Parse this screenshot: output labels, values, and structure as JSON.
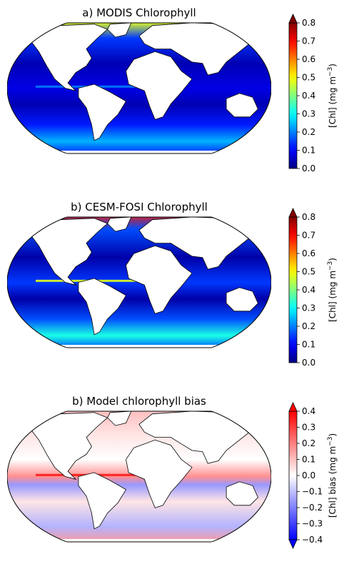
{
  "panels": [
    {
      "title": "a) MODIS Chlorophyll",
      "colorbar_label": "[Chl] (mg m",
      "colorbar_label_exp": "−3",
      "colorbar_label_end": ")",
      "scale": "jet",
      "vmin": 0.0,
      "vmax": 0.8,
      "ticks": [
        "0.0",
        "0.1",
        "0.2",
        "0.3",
        "0.4",
        "0.5",
        "0.6",
        "0.7",
        "0.8"
      ],
      "extend": "max"
    },
    {
      "title": "b) CESM-FOSI Chlorophyll",
      "colorbar_label": "[Chl] (mg m",
      "colorbar_label_exp": "−3",
      "colorbar_label_end": ")",
      "scale": "jet",
      "vmin": 0.0,
      "vmax": 0.8,
      "ticks": [
        "0.0",
        "0.1",
        "0.2",
        "0.3",
        "0.4",
        "0.5",
        "0.6",
        "0.7",
        "0.8"
      ],
      "extend": "max"
    },
    {
      "title": "b) Model chlorophyll bias",
      "colorbar_label": "[Chl] bias (mg m",
      "colorbar_label_exp": "−3",
      "colorbar_label_end": ")",
      "scale": "bwr",
      "vmin": -0.4,
      "vmax": 0.4,
      "ticks": [
        "−0.4",
        "−0.3",
        "−0.2",
        "−0.1",
        "0.0",
        "0.1",
        "0.2",
        "0.3",
        "0.4"
      ],
      "extend": "both"
    }
  ],
  "colors": {
    "land": "#ffffff",
    "coast": "#000000",
    "jet_low": "#00008f",
    "jet_high": "#7f0000",
    "bwr_low": "#0000ff",
    "bwr_high": "#ff0000"
  }
}
